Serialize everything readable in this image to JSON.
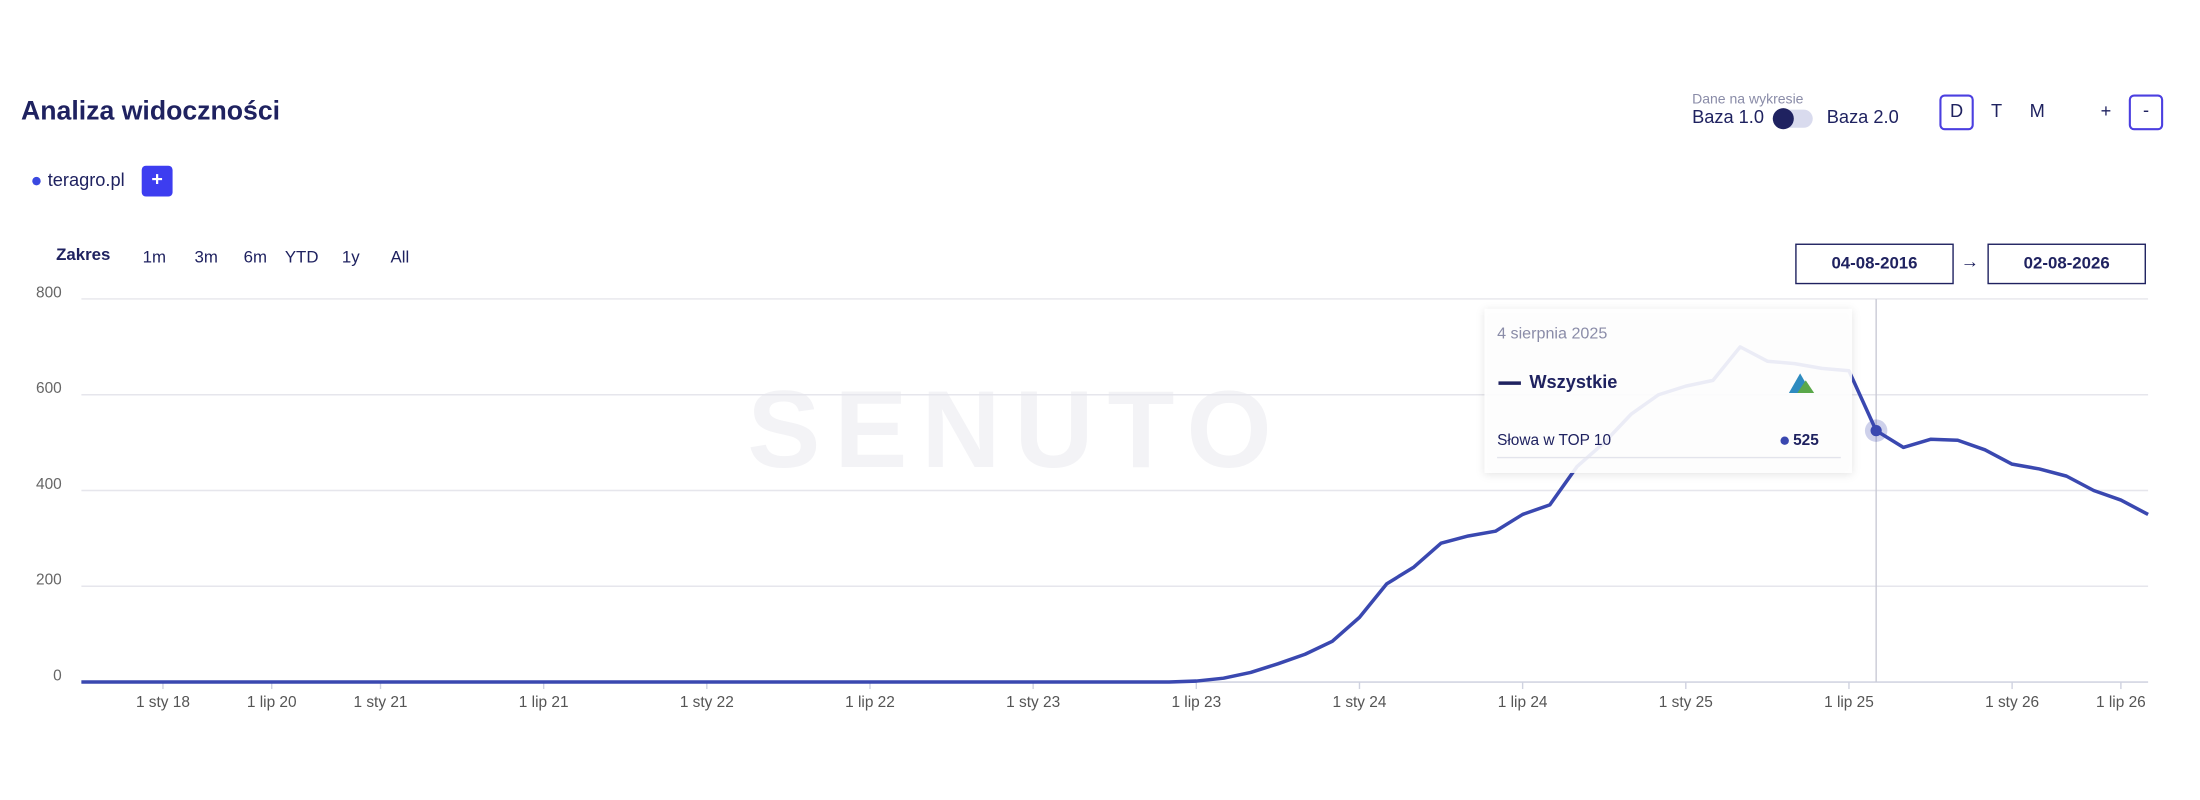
{
  "header": {
    "title": "Analiza widoczności",
    "data_toggle": {
      "label": "Dane na wykresie",
      "left": "Baza 1.0",
      "right": "Baza 2.0"
    },
    "granularity": [
      "D",
      "T",
      "M"
    ],
    "zoom": [
      "+",
      "-"
    ]
  },
  "domains": {
    "items": [
      "teragro.pl"
    ],
    "add": "+"
  },
  "range": {
    "label": "Zakres",
    "options": [
      "1m",
      "3m",
      "6m",
      "YTD",
      "1y",
      "All"
    ],
    "from": "04-08-2016",
    "arrow": "→",
    "to": "02-08-2026"
  },
  "chart_data": {
    "type": "line",
    "watermark": "SENUTO",
    "categories": [
      null,
      null,
      null,
      "1 sty 18",
      null,
      null,
      null,
      "1 lip 20",
      null,
      null,
      null,
      "1 sty 21",
      null,
      null,
      null,
      null,
      null,
      "1 lip 21",
      null,
      null,
      null,
      null,
      null,
      "1 sty 22",
      null,
      null,
      null,
      null,
      null,
      "1 lip 22",
      null,
      null,
      null,
      null,
      null,
      "1 sty 23",
      null,
      null,
      null,
      null,
      null,
      "1 lip 23",
      null,
      null,
      null,
      null,
      null,
      "1 sty 24",
      null,
      null,
      null,
      null,
      null,
      "1 lip 24",
      null,
      null,
      null,
      null,
      null,
      "1 sty 25",
      null,
      null,
      null,
      null,
      null,
      "1 lip 25",
      null,
      null,
      null,
      null,
      null,
      "1 sty 26",
      null,
      null,
      null,
      "1 lip 26",
      null
    ],
    "series": [
      {
        "name": "Słowa w TOP 10",
        "color": "#3a48b0",
        "values": [
          0,
          0,
          0,
          0,
          0,
          0,
          0,
          0,
          0,
          0,
          0,
          0,
          0,
          0,
          0,
          0,
          0,
          0,
          0,
          0,
          0,
          0,
          0,
          0,
          0,
          0,
          0,
          0,
          0,
          0,
          0,
          0,
          0,
          0,
          0,
          0,
          0,
          0,
          0,
          0,
          0,
          2,
          8,
          20,
          38,
          58,
          85,
          135,
          205,
          240,
          290,
          305,
          315,
          350,
          370,
          450,
          500,
          560,
          600,
          618,
          630,
          700,
          670,
          665,
          655,
          650,
          525,
          490,
          507,
          505,
          485,
          455,
          445,
          430,
          400,
          380,
          350
        ]
      }
    ],
    "ylim": [
      0,
      800
    ],
    "yticks": [
      0,
      200,
      400,
      600,
      800
    ],
    "grid": true
  },
  "tooltip": {
    "date": "4 sierpnia 2025",
    "group": "Wszystkie",
    "value": 525
  }
}
